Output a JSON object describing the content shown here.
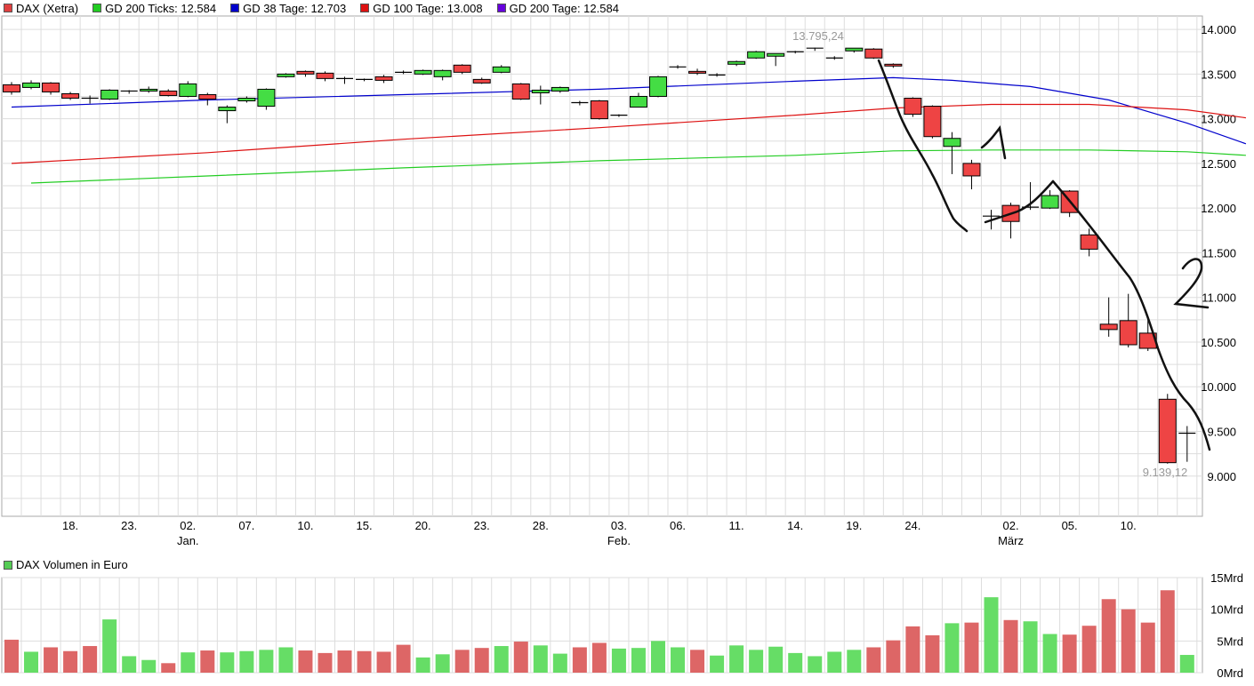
{
  "legend": [
    {
      "label": "DAX (Xetra)",
      "color": "#e04040"
    },
    {
      "label": "GD 200 Ticks: 12.584",
      "color": "#22cc22"
    },
    {
      "label": "GD 38 Tage: 12.703",
      "color": "#0000cc"
    },
    {
      "label": "GD 100 Tage: 13.008",
      "color": "#dd1111"
    },
    {
      "label": "GD 200 Tage: 12.584",
      "color": "#6600dd"
    }
  ],
  "volume_legend": {
    "label": "DAX Volumen in Euro",
    "color": "#55cc55"
  },
  "annotations": {
    "high_label": "13.795,24",
    "low_label": "9.139,12",
    "hand_1": "1",
    "hand_2": "2"
  },
  "colors": {
    "up": "#44dd44",
    "down": "#ee4444",
    "vol_up": "#66dd66",
    "vol_down": "#dd6666",
    "grid": "#dddddd"
  },
  "chart_data": [
    {
      "type": "candlestick",
      "ylim": [
        8550,
        14150
      ],
      "yticks": [
        9000,
        9500,
        10000,
        10500,
        11000,
        11500,
        12000,
        12500,
        13000,
        13500,
        14000
      ],
      "ytick_labels": [
        "9.000",
        "9.500",
        "10.000",
        "10.500",
        "11.000",
        "11.500",
        "12.000",
        "12.500",
        "13.000",
        "13.500",
        "14.000"
      ],
      "xtick_labels": [
        {
          "i": 3,
          "day": "18.",
          "month": ""
        },
        {
          "i": 6,
          "day": "23.",
          "month": ""
        },
        {
          "i": 9,
          "day": "02.",
          "month": "Jan."
        },
        {
          "i": 12,
          "day": "07.",
          "month": ""
        },
        {
          "i": 15,
          "day": "10.",
          "month": ""
        },
        {
          "i": 18,
          "day": "15.",
          "month": ""
        },
        {
          "i": 21,
          "day": "20.",
          "month": ""
        },
        {
          "i": 24,
          "day": "23.",
          "month": ""
        },
        {
          "i": 27,
          "day": "28.",
          "month": ""
        },
        {
          "i": 31,
          "day": "03.",
          "month": "Feb."
        },
        {
          "i": 34,
          "day": "06.",
          "month": ""
        },
        {
          "i": 37,
          "day": "11.",
          "month": ""
        },
        {
          "i": 40,
          "day": "14.",
          "month": ""
        },
        {
          "i": 43,
          "day": "19.",
          "month": ""
        },
        {
          "i": 46,
          "day": "24.",
          "month": ""
        },
        {
          "i": 51,
          "day": "02.",
          "month": "März"
        },
        {
          "i": 54,
          "day": "05.",
          "month": ""
        },
        {
          "i": 57,
          "day": "10.",
          "month": ""
        }
      ],
      "candles": [
        {
          "o": 13380,
          "h": 13410,
          "c": 13300,
          "l": 13270
        },
        {
          "o": 13350,
          "h": 13430,
          "c": 13400,
          "l": 13330
        },
        {
          "o": 13400,
          "h": 13410,
          "c": 13300,
          "l": 13270
        },
        {
          "o": 13280,
          "h": 13300,
          "c": 13230,
          "l": 13210
        },
        {
          "o": 13230,
          "h": 13260,
          "c": 13220,
          "l": 13170
        },
        {
          "o": 13220,
          "h": 13330,
          "c": 13320,
          "l": 13210
        },
        {
          "o": 13300,
          "h": 13320,
          "c": 13310,
          "l": 13280
        },
        {
          "o": 13310,
          "h": 13360,
          "c": 13330,
          "l": 13290
        },
        {
          "o": 13310,
          "h": 13330,
          "c": 13260,
          "l": 13250
        },
        {
          "o": 13250,
          "h": 13420,
          "c": 13390,
          "l": 13240
        },
        {
          "o": 13270,
          "h": 13290,
          "c": 13220,
          "l": 13150
        },
        {
          "o": 13090,
          "h": 13150,
          "c": 13130,
          "l": 12950
        },
        {
          "o": 13200,
          "h": 13250,
          "c": 13230,
          "l": 13180
        },
        {
          "o": 13140,
          "h": 13340,
          "c": 13330,
          "l": 13100
        },
        {
          "o": 13470,
          "h": 13510,
          "c": 13500,
          "l": 13460
        },
        {
          "o": 13530,
          "h": 13540,
          "c": 13500,
          "l": 13470
        },
        {
          "o": 13510,
          "h": 13530,
          "c": 13450,
          "l": 13420
        },
        {
          "o": 13450,
          "h": 13470,
          "c": 13440,
          "l": 13390
        },
        {
          "o": 13440,
          "h": 13450,
          "c": 13430,
          "l": 13420
        },
        {
          "o": 13470,
          "h": 13490,
          "c": 13430,
          "l": 13400
        },
        {
          "o": 13520,
          "h": 13540,
          "c": 13510,
          "l": 13500
        },
        {
          "o": 13500,
          "h": 13550,
          "c": 13540,
          "l": 13490
        },
        {
          "o": 13470,
          "h": 13550,
          "c": 13540,
          "l": 13430
        },
        {
          "o": 13600,
          "h": 13610,
          "c": 13520,
          "l": 13500
        },
        {
          "o": 13440,
          "h": 13460,
          "c": 13400,
          "l": 13390
        },
        {
          "o": 13520,
          "h": 13600,
          "c": 13580,
          "l": 13510
        },
        {
          "o": 13390,
          "h": 13400,
          "c": 13220,
          "l": 13210
        },
        {
          "o": 13290,
          "h": 13370,
          "c": 13320,
          "l": 13160
        },
        {
          "o": 13310,
          "h": 13360,
          "c": 13350,
          "l": 13290
        },
        {
          "o": 13180,
          "h": 13200,
          "c": 13170,
          "l": 13150
        },
        {
          "o": 13200,
          "h": 13210,
          "c": 13000,
          "l": 12990
        },
        {
          "o": 13040,
          "h": 13050,
          "c": 13040,
          "l": 13020
        },
        {
          "o": 13130,
          "h": 13290,
          "c": 13250,
          "l": 13130
        },
        {
          "o": 13250,
          "h": 13480,
          "c": 13470,
          "l": 13240
        },
        {
          "o": 13580,
          "h": 13600,
          "c": 13580,
          "l": 13560
        },
        {
          "o": 13530,
          "h": 13560,
          "c": 13510,
          "l": 13490
        },
        {
          "o": 13490,
          "h": 13510,
          "c": 13490,
          "l": 13470
        },
        {
          "o": 13610,
          "h": 13650,
          "c": 13640,
          "l": 13590
        },
        {
          "o": 13680,
          "h": 13760,
          "c": 13750,
          "l": 13670
        },
        {
          "o": 13700,
          "h": 13730,
          "c": 13730,
          "l": 13590
        },
        {
          "o": 13740,
          "h": 13760,
          "c": 13750,
          "l": 13730
        },
        {
          "o": 13780,
          "h": 13795,
          "c": 13790,
          "l": 13760
        },
        {
          "o": 13680,
          "h": 13700,
          "c": 13680,
          "l": 13660
        },
        {
          "o": 13760,
          "h": 13790,
          "c": 13790,
          "l": 13740
        },
        {
          "o": 13780,
          "h": 13790,
          "c": 13680,
          "l": 13670
        },
        {
          "o": 13610,
          "h": 13620,
          "c": 13590,
          "l": 13570
        },
        {
          "o": 13230,
          "h": 13240,
          "c": 13050,
          "l": 13020
        },
        {
          "o": 13140,
          "h": 13150,
          "c": 12800,
          "l": 12780
        },
        {
          "o": 12690,
          "h": 12850,
          "c": 12780,
          "l": 12380
        },
        {
          "o": 12500,
          "h": 12540,
          "c": 12360,
          "l": 12210
        },
        {
          "o": 11900,
          "h": 11980,
          "c": 11910,
          "l": 11760
        },
        {
          "o": 12030,
          "h": 12060,
          "c": 11850,
          "l": 11660
        },
        {
          "o": 12000,
          "h": 12290,
          "c": 12010,
          "l": 11980
        },
        {
          "o": 12000,
          "h": 12200,
          "c": 12140,
          "l": 11990
        },
        {
          "o": 12190,
          "h": 12200,
          "c": 11950,
          "l": 11900
        },
        {
          "o": 11700,
          "h": 11770,
          "c": 11540,
          "l": 11460
        },
        {
          "o": 10700,
          "h": 11000,
          "c": 10640,
          "l": 10560
        },
        {
          "o": 10740,
          "h": 11040,
          "c": 10470,
          "l": 10440
        },
        {
          "o": 10600,
          "h": 10770,
          "c": 10430,
          "l": 10400
        },
        {
          "o": 9860,
          "h": 9920,
          "c": 9150,
          "l": 9139
        },
        {
          "o": 9470,
          "h": 9560,
          "c": 9480,
          "l": 9160
        }
      ],
      "moving_averages": [
        {
          "name": "GD 38 Tage",
          "color": "#0000cc",
          "points": [
            [
              0,
              13130
            ],
            [
              10,
              13210
            ],
            [
              20,
              13270
            ],
            [
              30,
              13330
            ],
            [
              40,
              13420
            ],
            [
              45,
              13460
            ],
            [
              48,
              13430
            ],
            [
              52,
              13360
            ],
            [
              56,
              13210
            ],
            [
              60,
              12950
            ],
            [
              63,
              12720
            ]
          ]
        },
        {
          "name": "GD 100 Tage",
          "color": "#dd1111",
          "points": [
            [
              0,
              12500
            ],
            [
              10,
              12620
            ],
            [
              20,
              12770
            ],
            [
              30,
              12900
            ],
            [
              40,
              13040
            ],
            [
              45,
              13120
            ],
            [
              50,
              13160
            ],
            [
              55,
              13160
            ],
            [
              60,
              13100
            ],
            [
              63,
              13010
            ]
          ]
        },
        {
          "name": "GD 200 Ticks",
          "color": "#22cc22",
          "points": [
            [
              1,
              12280
            ],
            [
              10,
              12360
            ],
            [
              20,
              12450
            ],
            [
              30,
              12530
            ],
            [
              40,
              12590
            ],
            [
              45,
              12640
            ],
            [
              50,
              12650
            ],
            [
              55,
              12650
            ],
            [
              60,
              12630
            ],
            [
              63,
              12590
            ]
          ]
        }
      ]
    },
    {
      "type": "bar",
      "title": "DAX Volumen in Euro",
      "ylim": [
        0,
        15
      ],
      "yticks": [
        0,
        5,
        10,
        15
      ],
      "ytick_labels": [
        "0Mrd",
        "5Mrd",
        "10Mrd",
        "15Mrd"
      ],
      "values": [
        5.2,
        3.3,
        4.0,
        3.4,
        4.2,
        8.4,
        2.6,
        2.0,
        1.5,
        3.2,
        3.5,
        3.2,
        3.4,
        3.6,
        4.0,
        3.5,
        3.1,
        3.5,
        3.4,
        3.3,
        4.4,
        2.4,
        2.9,
        3.6,
        3.9,
        4.2,
        4.9,
        4.3,
        3.0,
        4.0,
        4.7,
        3.8,
        3.9,
        5.0,
        4.0,
        3.6,
        2.7,
        4.3,
        3.6,
        4.1,
        3.1,
        2.6,
        3.3,
        3.6,
        4.0,
        5.1,
        7.3,
        5.9,
        7.8,
        7.9,
        11.9,
        8.3,
        8.1,
        6.1,
        6.0,
        7.4,
        11.6,
        10.0,
        7.9,
        13.0,
        2.8
      ]
    }
  ]
}
